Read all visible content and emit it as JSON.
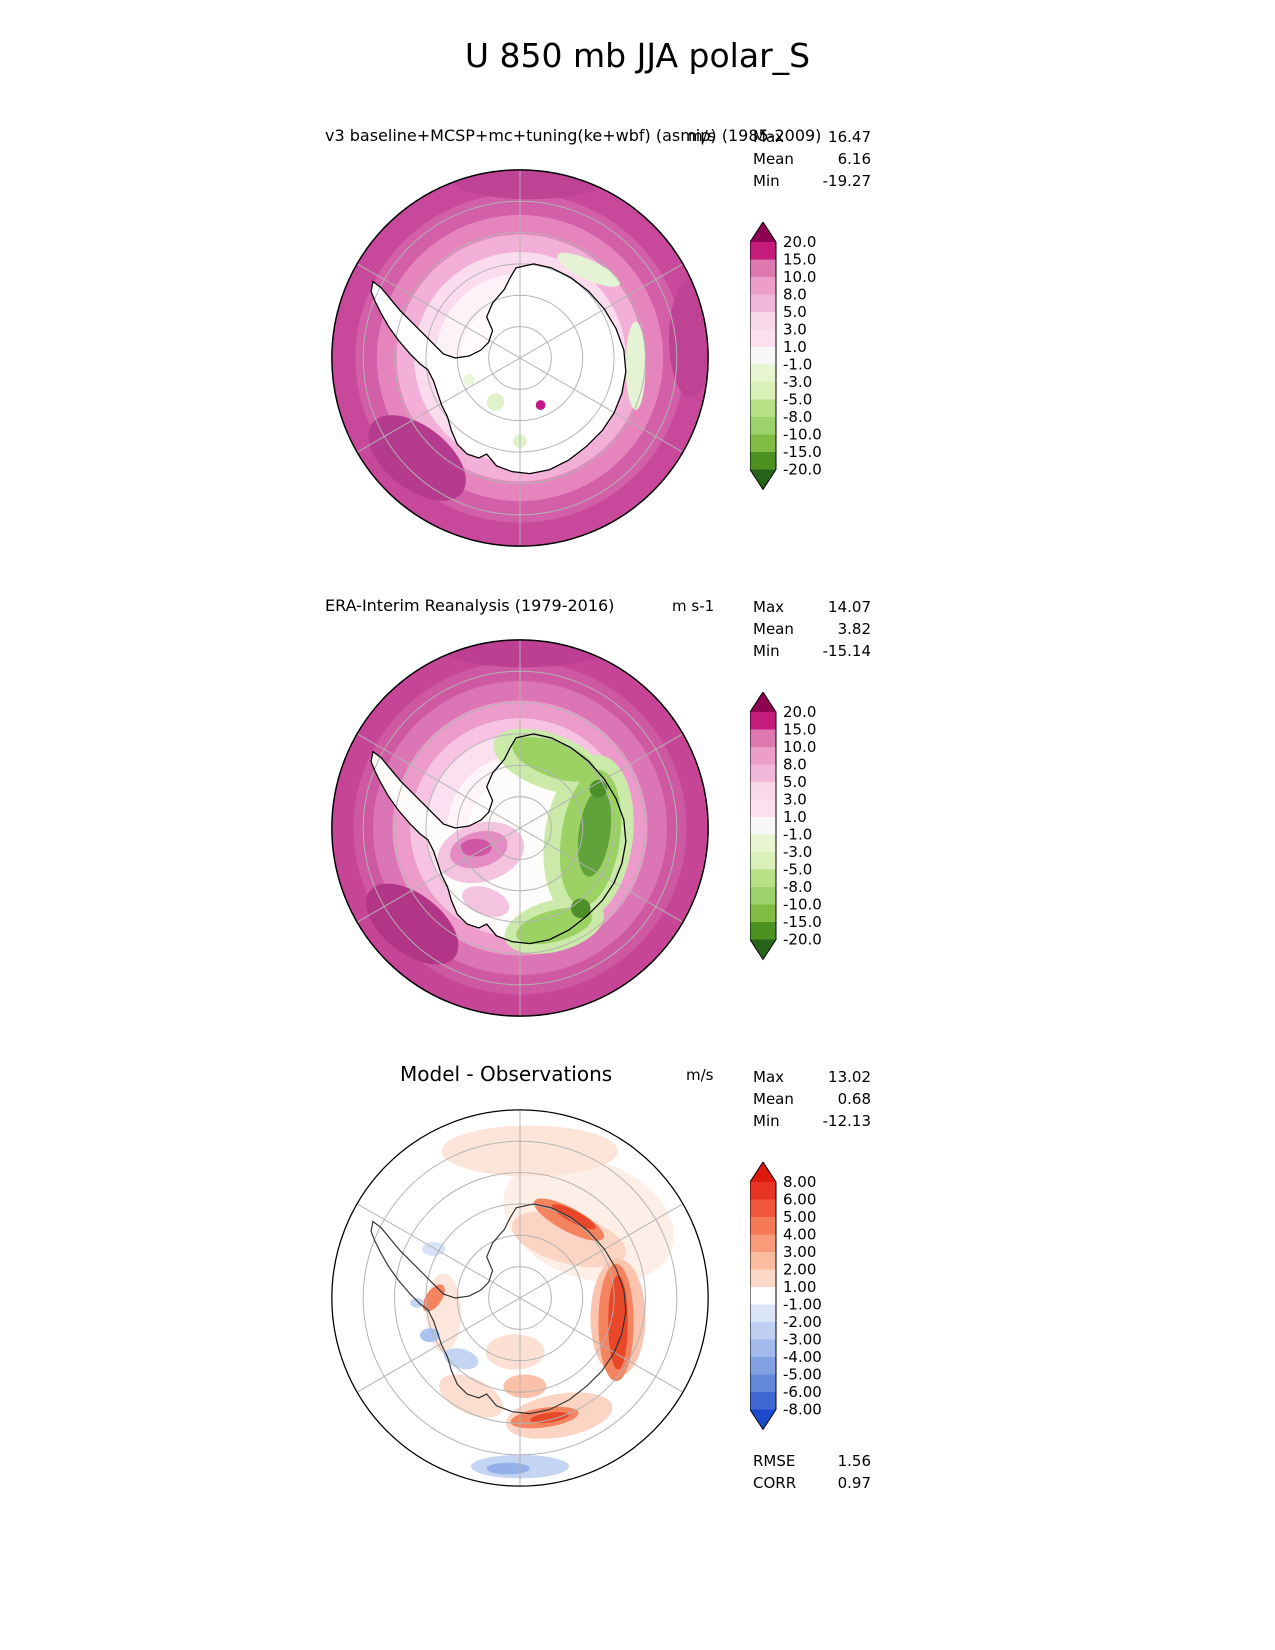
{
  "title": "U 850 mb JJA polar_S",
  "ui": {
    "stat_labels": {
      "max": "Max",
      "mean": "Mean",
      "min": "Min",
      "rmse": "RMSE",
      "corr": "CORR"
    }
  },
  "chart_data": [
    {
      "type": "heatmap",
      "projection": "south-polar-stereographic",
      "title": "v3 baseline+MCSP+mc+tuning(ke+wbf) (asmip) (1985-2009)",
      "units": "m/s",
      "stats": {
        "max": "16.47",
        "mean": "6.16",
        "min": "-19.27"
      },
      "colorbar": {
        "levels": [
          "20.0",
          "15.0",
          "10.0",
          "8.0",
          "5.0",
          "3.0",
          "1.0",
          "-1.0",
          "-3.0",
          "-5.0",
          "-8.0",
          "-10.0",
          "-15.0",
          "-20.0"
        ],
        "colors": [
          "#C51B7D",
          "#DE77AE",
          "#EC9DC8",
          "#F1B6DA",
          "#F9D8E8",
          "#FDE0EF",
          "#F7F7F7",
          "#E6F5D0",
          "#D9F0B9",
          "#B8E186",
          "#9BD36A",
          "#7FBC41",
          "#4D9221"
        ],
        "arrow_over": "#8E0152",
        "arrow_under": "#276419"
      }
    },
    {
      "type": "heatmap",
      "projection": "south-polar-stereographic",
      "title": "ERA-Interim Reanalysis (1979-2016)",
      "units": "m s-1",
      "stats": {
        "max": "14.07",
        "mean": "3.82",
        "min": "-15.14"
      },
      "colorbar": {
        "levels": [
          "20.0",
          "15.0",
          "10.0",
          "8.0",
          "5.0",
          "3.0",
          "1.0",
          "-1.0",
          "-3.0",
          "-5.0",
          "-8.0",
          "-10.0",
          "-15.0",
          "-20.0"
        ],
        "colors": [
          "#C51B7D",
          "#DE77AE",
          "#EC9DC8",
          "#F1B6DA",
          "#F9D8E8",
          "#FDE0EF",
          "#F7F7F7",
          "#E6F5D0",
          "#D9F0B9",
          "#B8E186",
          "#9BD36A",
          "#7FBC41",
          "#4D9221"
        ],
        "arrow_over": "#8E0152",
        "arrow_under": "#276419"
      }
    },
    {
      "type": "heatmap",
      "projection": "south-polar-stereographic",
      "title": "Model - Observations",
      "units": "m/s",
      "stats": {
        "max": "13.02",
        "mean": "0.68",
        "min": "-12.13",
        "rmse": "1.56",
        "corr": "0.97"
      },
      "colorbar": {
        "levels": [
          "8.00",
          "6.00",
          "5.00",
          "4.00",
          "3.00",
          "2.00",
          "1.00",
          "-1.00",
          "-2.00",
          "-3.00",
          "-4.00",
          "-5.00",
          "-6.00",
          "-8.00"
        ],
        "colors": [
          "#EA3423",
          "#F0573B",
          "#F57956",
          "#F99B78",
          "#FBBB9F",
          "#FDD8C8",
          "#FFFFFF",
          "#DBE5F8",
          "#C0D0F2",
          "#A2B9EB",
          "#82A0E3",
          "#6287DB",
          "#3F68D3"
        ],
        "arrow_over": "#DE1A0C",
        "arrow_under": "#1B4ACD"
      }
    }
  ]
}
